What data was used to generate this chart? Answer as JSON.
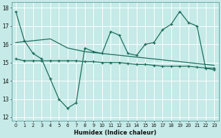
{
  "xlabel": "Humidex (Indice chaleur)",
  "bg_color": "#c5eae7",
  "grid_color": "#b0d8d5",
  "line_color": "#1a6b5a",
  "xlim": [
    -0.5,
    23.5
  ],
  "ylim": [
    11.8,
    18.3
  ],
  "yticks": [
    12,
    13,
    14,
    15,
    16,
    17,
    18
  ],
  "xticks": [
    0,
    1,
    2,
    3,
    4,
    5,
    6,
    7,
    8,
    9,
    10,
    11,
    12,
    13,
    14,
    15,
    16,
    17,
    18,
    19,
    20,
    21,
    22,
    23
  ],
  "line1_x": [
    0,
    1,
    2,
    3,
    4,
    5,
    6,
    7,
    8,
    9,
    10,
    11,
    12,
    13,
    14,
    15,
    16,
    17,
    18,
    19,
    20,
    21,
    22,
    23
  ],
  "line1_y": [
    17.8,
    16.2,
    15.5,
    15.2,
    14.1,
    13.0,
    12.5,
    12.8,
    15.8,
    15.6,
    15.5,
    16.7,
    16.5,
    15.5,
    15.4,
    16.0,
    16.1,
    16.8,
    17.1,
    17.8,
    17.2,
    17.0,
    14.7,
    14.6
  ],
  "line2_x": [
    0,
    1,
    2,
    3,
    4,
    5,
    6,
    7,
    8,
    9,
    10,
    11,
    12,
    13,
    14,
    15,
    16,
    17,
    18,
    19,
    20,
    21,
    22,
    23
  ],
  "line2_y": [
    16.1,
    16.15,
    16.2,
    16.25,
    16.3,
    16.05,
    15.8,
    15.7,
    15.6,
    15.55,
    15.5,
    15.45,
    15.4,
    15.35,
    15.3,
    15.25,
    15.2,
    15.15,
    15.1,
    15.05,
    15.0,
    14.95,
    14.9,
    14.85
  ],
  "line3_x": [
    0,
    1,
    2,
    3,
    4,
    5,
    6,
    7,
    8,
    9,
    10,
    11,
    12,
    13,
    14,
    15,
    16,
    17,
    18,
    19,
    20,
    21,
    22,
    23
  ],
  "line3_y": [
    15.2,
    15.1,
    15.1,
    15.1,
    15.1,
    15.1,
    15.1,
    15.1,
    15.05,
    15.05,
    15.0,
    15.0,
    15.0,
    14.95,
    14.9,
    14.9,
    14.85,
    14.8,
    14.8,
    14.8,
    14.8,
    14.75,
    14.7,
    14.7
  ]
}
